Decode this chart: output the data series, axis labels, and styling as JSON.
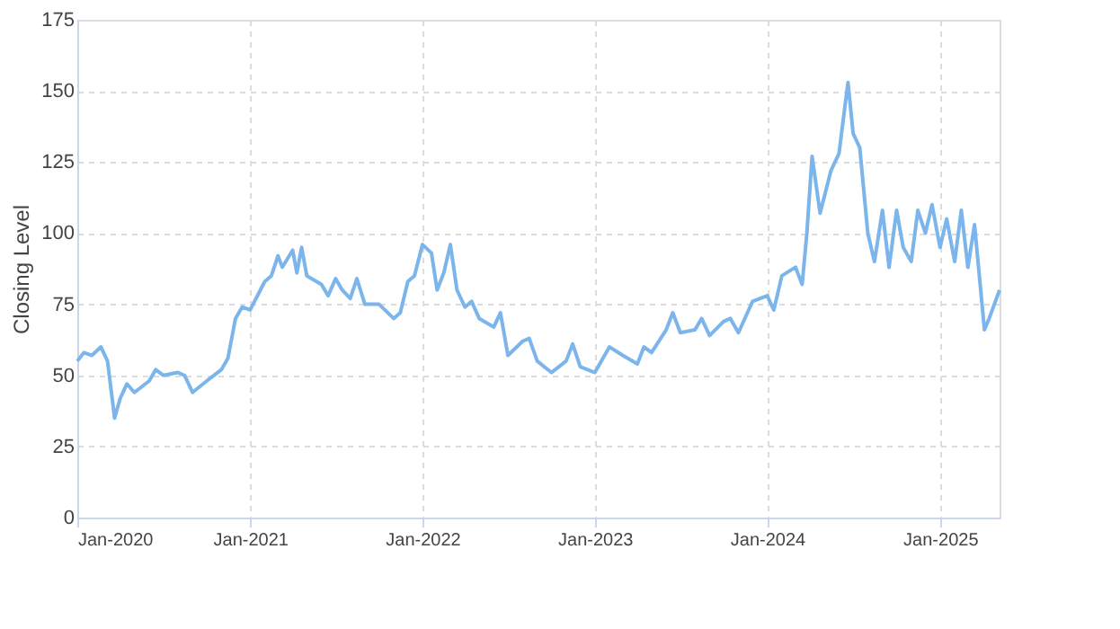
{
  "chart_data": {
    "type": "line",
    "ylabel": "Closing Level",
    "x": [
      "2020-01-01",
      "2020-01-15",
      "2020-02-01",
      "2020-02-20",
      "2020-03-05",
      "2020-03-20",
      "2020-04-01",
      "2020-04-15",
      "2020-05-01",
      "2020-06-01",
      "2020-06-15",
      "2020-07-01",
      "2020-08-01",
      "2020-08-15",
      "2020-09-01",
      "2020-10-01",
      "2020-11-01",
      "2020-11-15",
      "2020-12-01",
      "2020-12-15",
      "2021-01-01",
      "2021-02-01",
      "2021-02-15",
      "2021-03-01",
      "2021-03-10",
      "2021-04-01",
      "2021-04-10",
      "2021-04-20",
      "2021-05-01",
      "2021-06-01",
      "2021-06-15",
      "2021-07-01",
      "2021-07-15",
      "2021-08-01",
      "2021-08-15",
      "2021-09-01",
      "2021-10-01",
      "2021-11-01",
      "2021-11-15",
      "2021-12-01",
      "2021-12-15",
      "2022-01-01",
      "2022-01-20",
      "2022-02-01",
      "2022-02-15",
      "2022-03-01",
      "2022-03-15",
      "2022-04-01",
      "2022-04-15",
      "2022-05-01",
      "2022-06-01",
      "2022-06-15",
      "2022-07-01",
      "2022-08-01",
      "2022-08-15",
      "2022-09-01",
      "2022-10-01",
      "2022-11-01",
      "2022-11-15",
      "2022-12-01",
      "2023-01-01",
      "2023-02-01",
      "2023-03-01",
      "2023-04-01",
      "2023-04-15",
      "2023-05-01",
      "2023-06-01",
      "2023-06-15",
      "2023-07-01",
      "2023-08-01",
      "2023-08-15",
      "2023-09-01",
      "2023-10-01",
      "2023-10-15",
      "2023-11-01",
      "2023-12-01",
      "2024-01-01",
      "2024-01-15",
      "2024-02-01",
      "2024-03-01",
      "2024-03-15",
      "2024-03-25",
      "2024-04-05",
      "2024-04-22",
      "2024-05-15",
      "2024-06-01",
      "2024-06-20",
      "2024-07-01",
      "2024-07-15",
      "2024-08-01",
      "2024-08-15",
      "2024-09-01",
      "2024-09-15",
      "2024-10-01",
      "2024-10-15",
      "2024-11-01",
      "2024-11-15",
      "2024-12-01",
      "2024-12-15",
      "2025-01-01",
      "2025-01-15",
      "2025-02-01",
      "2025-02-15",
      "2025-03-01",
      "2025-03-15",
      "2025-04-05",
      "2025-04-15",
      "2025-05-07"
    ],
    "series": [
      {
        "color": "#7cb5ec",
        "values": [
          55,
          58,
          57,
          60,
          55,
          35,
          42,
          47,
          44,
          48,
          52,
          50,
          51,
          50,
          44,
          48,
          52,
          56,
          70,
          74,
          73,
          83,
          85,
          92,
          88,
          94,
          86,
          95,
          85,
          82,
          78,
          84,
          80,
          77,
          84,
          75,
          75,
          70,
          72,
          83,
          85,
          96,
          93,
          80,
          86,
          96,
          80,
          74,
          76,
          70,
          67,
          72,
          57,
          62,
          63,
          55,
          51,
          55,
          61,
          53,
          51,
          60,
          57,
          54,
          60,
          58,
          66,
          72,
          65,
          66,
          70,
          64,
          69,
          70,
          65,
          76,
          78,
          73,
          85,
          88,
          82,
          100,
          127,
          107,
          122,
          128,
          153,
          135,
          130,
          100,
          90,
          108,
          88,
          108,
          95,
          90,
          108,
          100,
          110,
          95,
          105,
          90,
          108,
          88,
          103,
          66,
          70,
          80
        ]
      }
    ],
    "xlim": [
      "2020-01-01",
      "2025-05-07"
    ],
    "xticks": [
      {
        "value": "2020-01-01",
        "label": "Jan-2020"
      },
      {
        "value": "2021-01-01",
        "label": "Jan-2021"
      },
      {
        "value": "2022-01-01",
        "label": "Jan-2022"
      },
      {
        "value": "2023-01-01",
        "label": "Jan-2023"
      },
      {
        "value": "2024-01-01",
        "label": "Jan-2024"
      },
      {
        "value": "2025-01-01",
        "label": "Jan-2025"
      }
    ],
    "ylim": [
      0,
      175
    ],
    "yticks": [
      0,
      25,
      50,
      75,
      100,
      125,
      150,
      175
    ],
    "grid": true,
    "marker": "none",
    "line_style": "solid"
  }
}
